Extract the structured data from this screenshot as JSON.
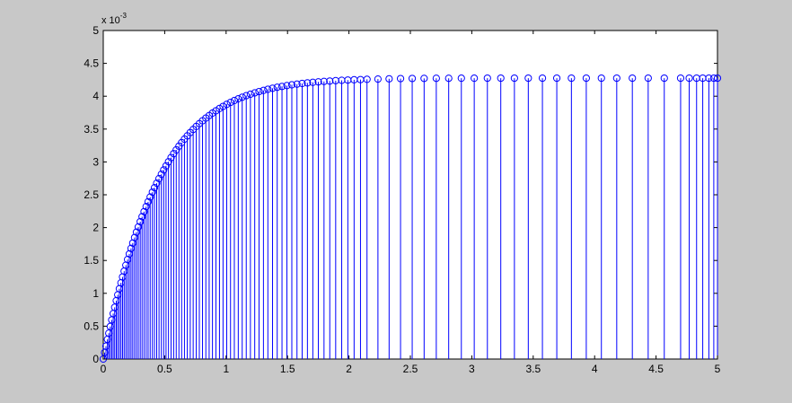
{
  "chart_data": {
    "type": "stem",
    "title": "",
    "xlabel": "",
    "ylabel": "",
    "xlim": [
      0,
      5
    ],
    "ylim": [
      0,
      5
    ],
    "y_exponent_label": {
      "base": "x 10",
      "exp": "-3"
    },
    "xticks": [
      "0",
      "0.5",
      "1",
      "1.5",
      "2",
      "2.5",
      "3",
      "3.5",
      "4",
      "4.5",
      "5"
    ],
    "yticks": [
      "0",
      "0.5",
      "1",
      "1.5",
      "2",
      "2.5",
      "3",
      "3.5",
      "4",
      "4.5",
      "5"
    ],
    "series": [
      {
        "color": "#0000ff",
        "marker": "circle",
        "x": [
          0,
          0.011,
          0.022,
          0.034,
          0.045,
          0.057,
          0.069,
          0.081,
          0.093,
          0.106,
          0.118,
          0.131,
          0.144,
          0.157,
          0.17,
          0.184,
          0.198,
          0.212,
          0.226,
          0.24,
          0.255,
          0.27,
          0.285,
          0.301,
          0.316,
          0.332,
          0.349,
          0.365,
          0.382,
          0.4,
          0.417,
          0.435,
          0.454,
          0.473,
          0.492,
          0.511,
          0.531,
          0.552,
          0.573,
          0.594,
          0.616,
          0.638,
          0.661,
          0.684,
          0.708,
          0.732,
          0.757,
          0.782,
          0.808,
          0.835,
          0.862,
          0.889,
          0.917,
          0.946,
          0.975,
          1.005,
          1.036,
          1.067,
          1.099,
          1.131,
          1.164,
          1.198,
          1.233,
          1.268,
          1.304,
          1.34,
          1.378,
          1.416,
          1.455,
          1.495,
          1.535,
          1.577,
          1.619,
          1.662,
          1.706,
          1.751,
          1.797,
          1.844,
          1.892,
          1.941,
          1.991,
          2.042,
          2.094,
          2.147,
          2.236,
          2.327,
          2.42,
          2.515,
          2.612,
          2.711,
          2.812,
          2.915,
          3.02,
          3.127,
          3.236,
          3.347,
          3.46,
          3.575,
          3.692,
          3.811,
          3.932,
          4.055,
          4.18,
          4.307,
          4.436,
          4.567,
          4.7,
          4.77,
          4.83,
          4.88,
          4.93,
          4.97,
          5.0
        ],
        "y": [
          0,
          0.099,
          0.196,
          0.299,
          0.393,
          0.495,
          0.595,
          0.692,
          0.787,
          0.888,
          0.977,
          1.07,
          1.16,
          1.249,
          1.337,
          1.428,
          1.515,
          1.6,
          1.684,
          1.765,
          1.849,
          1.931,
          2.01,
          2.091,
          2.167,
          2.243,
          2.321,
          2.393,
          2.466,
          2.54,
          2.608,
          2.676,
          2.746,
          2.813,
          2.878,
          2.94,
          3.003,
          3.066,
          3.126,
          3.183,
          3.24,
          3.294,
          3.347,
          3.397,
          3.447,
          3.494,
          3.54,
          3.583,
          3.626,
          3.667,
          3.706,
          3.743,
          3.778,
          3.813,
          3.845,
          3.876,
          3.906,
          3.934,
          3.96,
          3.985,
          4.008,
          4.03,
          4.051,
          4.07,
          4.088,
          4.105,
          4.121,
          4.136,
          4.149,
          4.162,
          4.173,
          4.184,
          4.194,
          4.203,
          4.211,
          4.218,
          4.225,
          4.231,
          4.237,
          4.242,
          4.246,
          4.25,
          4.253,
          4.257,
          4.261,
          4.265,
          4.268,
          4.27,
          4.271,
          4.273,
          4.273,
          4.274,
          4.274,
          4.275,
          4.275,
          4.275,
          4.275,
          4.275,
          4.275,
          4.275,
          4.275,
          4.275,
          4.275,
          4.275,
          4.275,
          4.275,
          4.275,
          4.275,
          4.275,
          4.275,
          4.275,
          4.275,
          4.275
        ]
      }
    ]
  }
}
